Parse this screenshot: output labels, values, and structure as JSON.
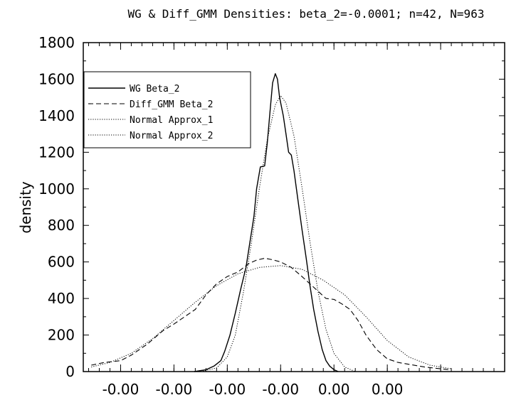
{
  "chart_data": {
    "type": "line",
    "title": "WG & Diff_GMM Densities: beta_2=-0.0001; n=42, N=963",
    "xlabel": "",
    "ylabel": "density",
    "xlim": [
      -0.00047,
      0.00032
    ],
    "ylim": [
      0,
      1800
    ],
    "x_tick_values": [
      -0.0004,
      -0.0003,
      -0.0002,
      -0.0001,
      0.0,
      0.0001,
      0.0002
    ],
    "x_tick_labels": [
      "-0.00",
      "-0.00",
      "-0.00",
      "-0.00",
      "0.00",
      "0.00",
      ""
    ],
    "y_ticks": [
      0,
      200,
      400,
      600,
      800,
      1000,
      1200,
      1400,
      1600,
      1800
    ],
    "grid": false,
    "legend_position": "top-left",
    "series": [
      {
        "name": "WG Beta_2",
        "style": "solid",
        "points": [
          [
            -0.000262,
            0
          ],
          [
            -0.00024,
            10
          ],
          [
            -0.000225,
            30
          ],
          [
            -0.000212,
            60
          ],
          [
            -0.000205,
            110
          ],
          [
            -0.000195,
            200
          ],
          [
            -0.000185,
            320
          ],
          [
            -0.000175,
            450
          ],
          [
            -0.000165,
            570
          ],
          [
            -0.000158,
            700
          ],
          [
            -0.00015,
            850
          ],
          [
            -0.000145,
            1000
          ],
          [
            -0.000138,
            1120
          ],
          [
            -0.00013,
            1125
          ],
          [
            -0.000125,
            1250
          ],
          [
            -0.00012,
            1420
          ],
          [
            -0.000115,
            1580
          ],
          [
            -0.00011,
            1630
          ],
          [
            -0.000106,
            1600
          ],
          [
            -0.000102,
            1500
          ],
          [
            -9.5e-05,
            1400
          ],
          [
            -9e-05,
            1300
          ],
          [
            -8.5e-05,
            1200
          ],
          [
            -8e-05,
            1185
          ],
          [
            -7.5e-05,
            1100
          ],
          [
            -6.8e-05,
            950
          ],
          [
            -6e-05,
            780
          ],
          [
            -5.2e-05,
            620
          ],
          [
            -4.5e-05,
            470
          ],
          [
            -3.8e-05,
            340
          ],
          [
            -3e-05,
            220
          ],
          [
            -2.2e-05,
            120
          ],
          [
            -1.5e-05,
            60
          ],
          [
            -8e-06,
            30
          ],
          [
            0.0,
            10
          ],
          [
            8e-06,
            0
          ]
        ]
      },
      {
        "name": "Diff_GMM Beta_2",
        "style": "dashed",
        "points": [
          [
            -0.000455,
            35
          ],
          [
            -0.00043,
            50
          ],
          [
            -0.0004,
            60
          ],
          [
            -0.00038,
            90
          ],
          [
            -0.00035,
            150
          ],
          [
            -0.00032,
            225
          ],
          [
            -0.0003,
            260
          ],
          [
            -0.00028,
            300
          ],
          [
            -0.00026,
            340
          ],
          [
            -0.00024,
            420
          ],
          [
            -0.00022,
            480
          ],
          [
            -0.0002,
            520
          ],
          [
            -0.00018,
            545
          ],
          [
            -0.00016,
            590
          ],
          [
            -0.000145,
            610
          ],
          [
            -0.00013,
            620
          ],
          [
            -0.000115,
            612
          ],
          [
            -0.0001,
            600
          ],
          [
            -8e-05,
            570
          ],
          [
            -6e-05,
            520
          ],
          [
            -4.5e-05,
            480
          ],
          [
            -3e-05,
            440
          ],
          [
            -1.5e-05,
            400
          ],
          [
            0.0,
            395
          ],
          [
            1.5e-05,
            370
          ],
          [
            3e-05,
            340
          ],
          [
            4.5e-05,
            280
          ],
          [
            6e-05,
            200
          ],
          [
            8e-05,
            120
          ],
          [
            0.0001,
            70
          ],
          [
            0.00012,
            50
          ],
          [
            0.00014,
            40
          ],
          [
            0.00017,
            25
          ],
          [
            0.0002,
            15
          ],
          [
            0.00022,
            10
          ]
        ]
      },
      {
        "name": "Normal Approx_1",
        "style": "dotted",
        "points": [
          [
            -0.00025,
            0
          ],
          [
            -0.00022,
            20
          ],
          [
            -0.0002,
            80
          ],
          [
            -0.000185,
            200
          ],
          [
            -0.00017,
            430
          ],
          [
            -0.000155,
            700
          ],
          [
            -0.00014,
            1000
          ],
          [
            -0.000125,
            1270
          ],
          [
            -0.00011,
            1460
          ],
          [
            -0.0001,
            1510
          ],
          [
            -9e-05,
            1470
          ],
          [
            -7.5e-05,
            1290
          ],
          [
            -6e-05,
            1010
          ],
          [
            -4.5e-05,
            710
          ],
          [
            -3e-05,
            440
          ],
          [
            -1.5e-05,
            230
          ],
          [
            0.0,
            100
          ],
          [
            2e-05,
            25
          ],
          [
            4e-05,
            0
          ]
        ]
      },
      {
        "name": "Normal Approx_2",
        "style": "dotted",
        "points": [
          [
            -0.000455,
            25
          ],
          [
            -0.00042,
            50
          ],
          [
            -0.00038,
            100
          ],
          [
            -0.00034,
            180
          ],
          [
            -0.0003,
            280
          ],
          [
            -0.00026,
            380
          ],
          [
            -0.00022,
            470
          ],
          [
            -0.00018,
            535
          ],
          [
            -0.00014,
            570
          ],
          [
            -0.0001,
            580
          ],
          [
            -6e-05,
            560
          ],
          [
            -2e-05,
            500
          ],
          [
            2e-05,
            420
          ],
          [
            6e-05,
            300
          ],
          [
            0.0001,
            170
          ],
          [
            0.00014,
            80
          ],
          [
            0.00018,
            35
          ],
          [
            0.00022,
            15
          ]
        ]
      }
    ]
  }
}
